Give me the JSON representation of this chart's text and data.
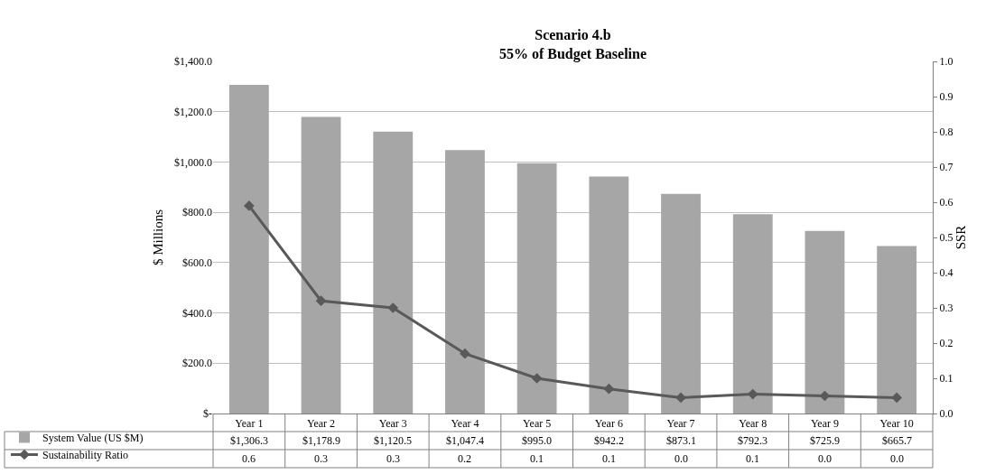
{
  "chart_data": {
    "type": "bar",
    "title": "Scenario 4.b",
    "subtitle": "55% of Budget Baseline",
    "ylabel": "$ Millions",
    "y2label": "SSR",
    "categories": [
      "Year 1",
      "Year 2",
      "Year 3",
      "Year 4",
      "Year 5",
      "Year 6",
      "Year 7",
      "Year 8",
      "Year 9",
      "Year 10"
    ],
    "series": [
      {
        "name": "System Value (US $M)",
        "color": "#a6a6a6",
        "values": [
          1306.3,
          1178.9,
          1120.5,
          1047.4,
          995.0,
          942.2,
          873.1,
          792.3,
          725.9,
          665.7
        ],
        "value_labels": [
          "$1,306.3",
          "$1,178.9",
          "$1,120.5",
          "$1,047.4",
          "$995.0",
          "$942.2",
          "$873.1",
          "$792.3",
          "$725.9",
          "$665.7"
        ]
      },
      {
        "name": "Sustainability Ratio",
        "type": "line",
        "axis": "y2",
        "color": "#595959",
        "values": [
          0.59,
          0.32,
          0.3,
          0.17,
          0.1,
          0.07,
          0.045,
          0.055,
          0.05,
          0.045
        ],
        "value_labels": [
          "0.6",
          "0.3",
          "0.3",
          "0.2",
          "0.1",
          "0.1",
          "0.0",
          "0.1",
          "0.0",
          "0.0"
        ]
      }
    ],
    "ylim": [
      0,
      1400
    ],
    "yticks": [
      {
        "value": 0,
        "label": "$-"
      },
      {
        "value": 200,
        "label": "$200.0"
      },
      {
        "value": 400,
        "label": "$400.0"
      },
      {
        "value": 600,
        "label": "$600.0"
      },
      {
        "value": 800,
        "label": "$800.0"
      },
      {
        "value": 1000,
        "label": "$1,000.0"
      },
      {
        "value": 1200,
        "label": "$1,200.0"
      },
      {
        "value": 1400,
        "label": "$1,400.0"
      }
    ],
    "y2lim": [
      0,
      1
    ],
    "y2ticks": [
      {
        "value": 0,
        "label": "0.0"
      },
      {
        "value": 0.1,
        "label": "0.1"
      },
      {
        "value": 0.2,
        "label": "0.2"
      },
      {
        "value": 0.3,
        "label": "0.3"
      },
      {
        "value": 0.4,
        "label": "0.4"
      },
      {
        "value": 0.5,
        "label": "0.5"
      },
      {
        "value": 0.6,
        "label": "0.6"
      },
      {
        "value": 0.7,
        "label": "0.7"
      },
      {
        "value": 0.8,
        "label": "0.8"
      },
      {
        "value": 0.9,
        "label": "0.9"
      },
      {
        "value": 1,
        "label": "1.0"
      }
    ],
    "grid": "y",
    "legend": "bottom left",
    "marker": "diamond",
    "line_style": "solid"
  }
}
